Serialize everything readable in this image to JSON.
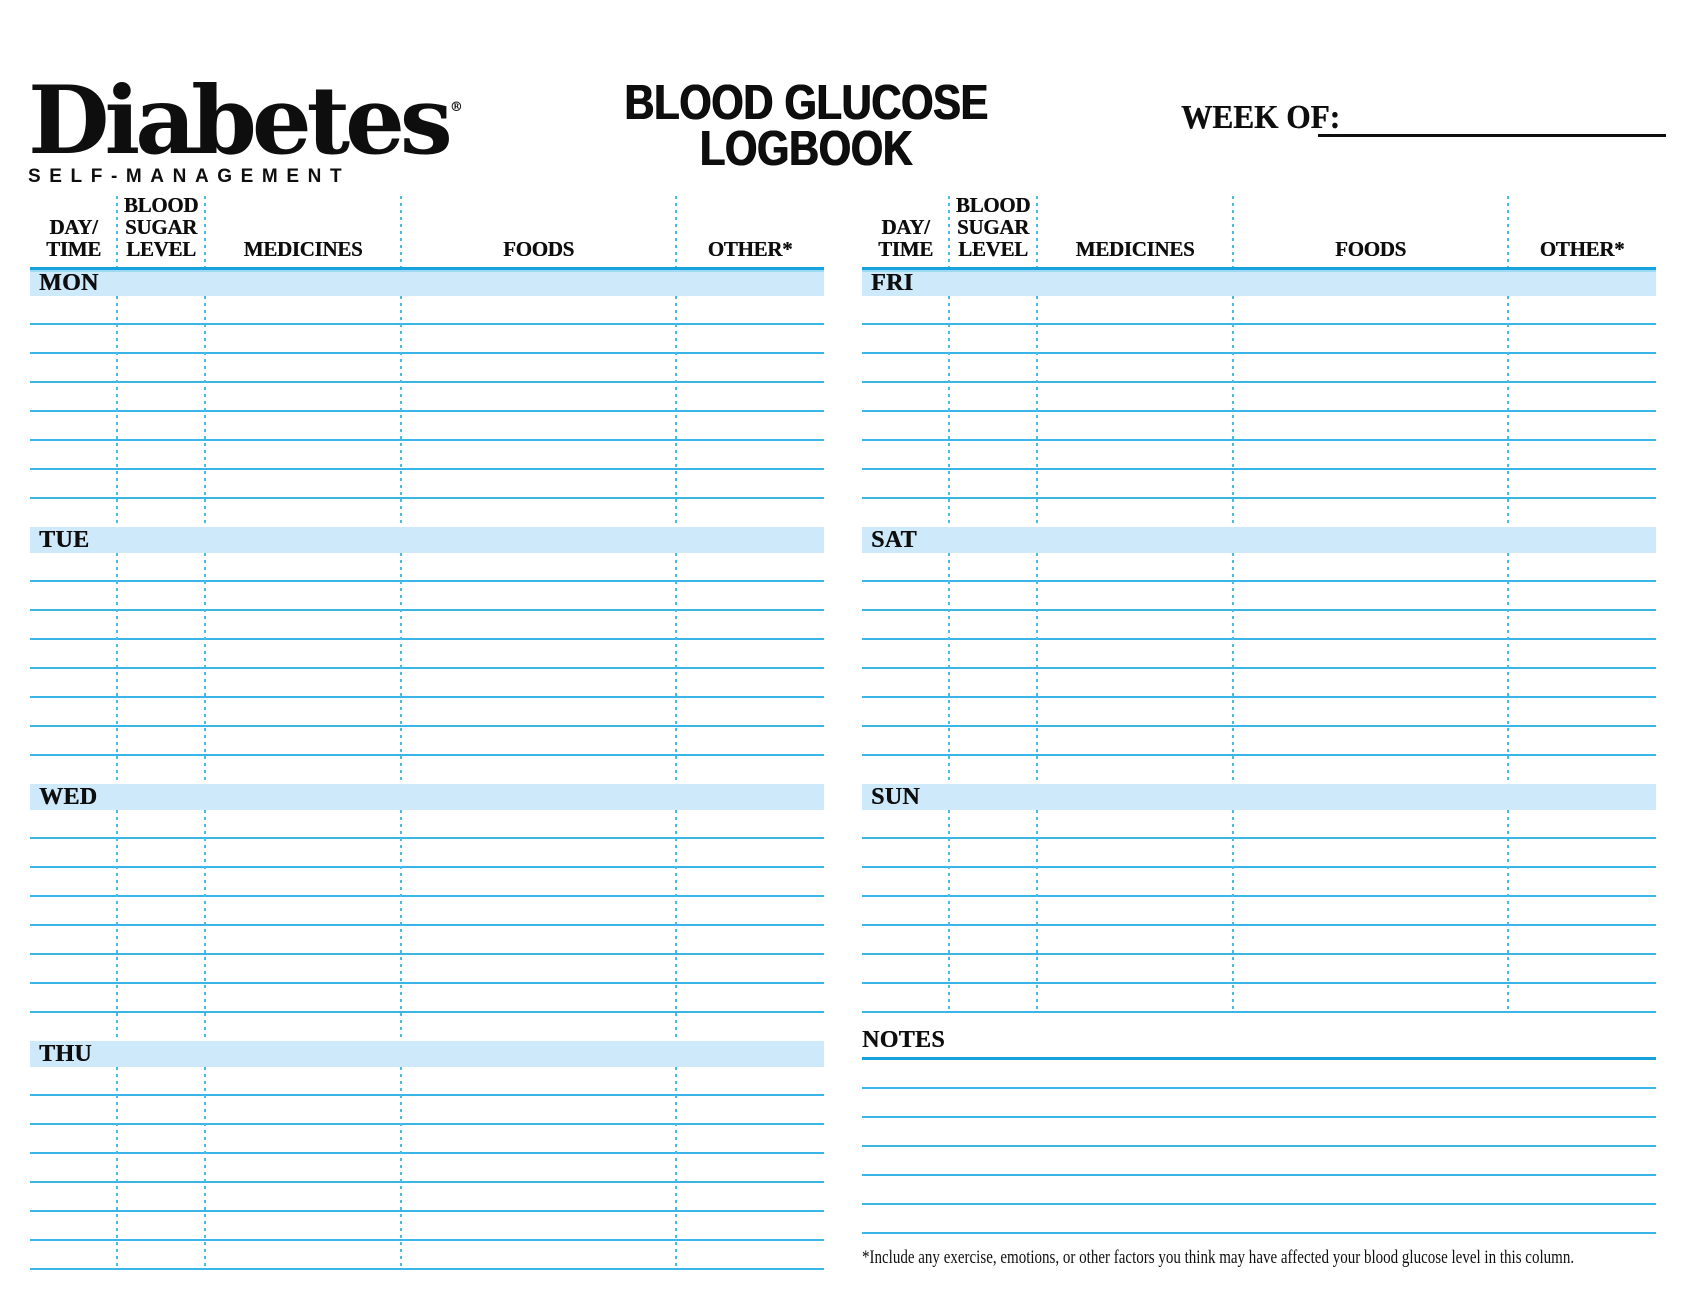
{
  "logo": {
    "brand": "Diabetes",
    "registered": "®",
    "tagline": "SELF-MANAGEMENT"
  },
  "header": {
    "title_line1": "BLOOD GLUCOSE",
    "title_line2": "LOGBOOK",
    "week_of_label": "WEEK OF:"
  },
  "columns": [
    "DAY/\nTIME",
    "BLOOD\nSUGAR\nLEVEL",
    "MEDICINES",
    "FOODS",
    "OTHER*"
  ],
  "rows_per_day": 7,
  "tables": [
    {
      "id": "left",
      "days": [
        "MON",
        "TUE",
        "WED",
        "THU"
      ]
    },
    {
      "id": "right",
      "days": [
        "FRI",
        "SAT",
        "SUN"
      ]
    }
  ],
  "notes": {
    "heading": "NOTES",
    "lines": 6
  },
  "footnote": "*Include any exercise, emotions, or other factors you think may have affected your blood glucose level in this column.",
  "colors": {
    "accent_line": "#17a2dd",
    "row_line": "#3ab5e7",
    "dotted_line": "#49bbe9",
    "band_fill": "#cee9f9",
    "text": "#0e0e0e"
  }
}
